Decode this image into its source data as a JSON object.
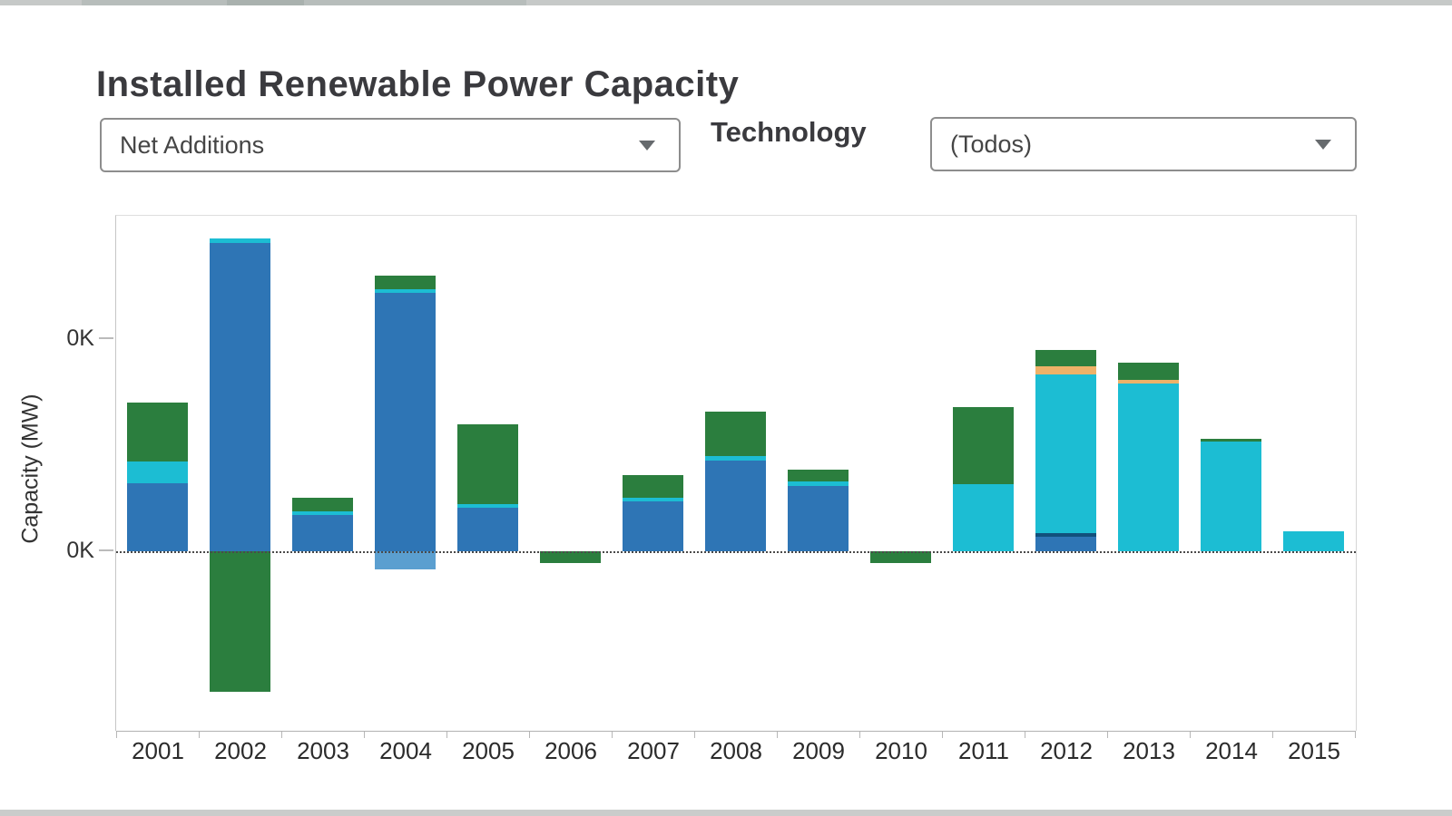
{
  "header": {
    "title": "Installed Renewable Power Capacity"
  },
  "controls": {
    "measure_dropdown": {
      "value": "Net Additions"
    },
    "technology_label": "Technology",
    "technology_dropdown": {
      "value": "(Todos)"
    }
  },
  "chart_data": {
    "type": "bar",
    "stacked": true,
    "title": "Installed Renewable Power Capacity",
    "xlabel": "",
    "ylabel": "Capacity (MW)",
    "y_tick_labels": [
      "0K",
      "0K"
    ],
    "y_tick_values_mw": [
      400,
      0
    ],
    "ylim_mw": [
      -340,
      635
    ],
    "grid": "zero-dotted-line-only",
    "legend": "none",
    "units_note": "MW, estimated from unlabeled axis (tick interval assumed 400 MW)",
    "colors": {
      "blue": "#2e75b5",
      "teal": "#1cbdd3",
      "green": "#2b7e3e",
      "orange": "#eeb268",
      "lightblue": "#5b9fd0",
      "navy_edge": "#12507c"
    },
    "years": [
      {
        "year": "2001",
        "pos": [
          [
            "blue",
            128
          ],
          [
            "teal",
            41
          ],
          [
            "green",
            111
          ]
        ],
        "neg": []
      },
      {
        "year": "2002",
        "pos": [
          [
            "blue",
            581
          ],
          [
            "teal",
            9
          ]
        ],
        "neg": [
          [
            "green",
            265
          ]
        ]
      },
      {
        "year": "2003",
        "pos": [
          [
            "blue",
            68
          ],
          [
            "teal",
            7
          ],
          [
            "green",
            26
          ]
        ],
        "neg": []
      },
      {
        "year": "2004",
        "pos": [
          [
            "blue",
            487
          ],
          [
            "teal",
            7
          ],
          [
            "green",
            26
          ]
        ],
        "neg": [
          [
            "lightblue",
            34
          ]
        ]
      },
      {
        "year": "2005",
        "pos": [
          [
            "blue",
            82
          ],
          [
            "teal",
            7
          ],
          [
            "green",
            150
          ]
        ],
        "neg": []
      },
      {
        "year": "2006",
        "pos": [],
        "neg": [
          [
            "green",
            22
          ]
        ]
      },
      {
        "year": "2007",
        "pos": [
          [
            "blue",
            94
          ],
          [
            "teal",
            7
          ],
          [
            "green",
            43
          ]
        ],
        "neg": []
      },
      {
        "year": "2008",
        "pos": [
          [
            "blue",
            171
          ],
          [
            "teal",
            9
          ],
          [
            "green",
            84
          ]
        ],
        "neg": []
      },
      {
        "year": "2009",
        "pos": [
          [
            "blue",
            123
          ],
          [
            "teal",
            9
          ],
          [
            "green",
            21
          ]
        ],
        "neg": []
      },
      {
        "year": "2010",
        "pos": [],
        "neg": [
          [
            "green",
            22
          ]
        ]
      },
      {
        "year": "2011",
        "pos": [
          [
            "teal",
            127
          ],
          [
            "green",
            145
          ]
        ],
        "neg": []
      },
      {
        "year": "2012",
        "pos": [
          [
            "blue",
            34,
            "edge"
          ],
          [
            "teal",
            299
          ],
          [
            "orange",
            15
          ],
          [
            "green",
            32
          ]
        ],
        "neg": []
      },
      {
        "year": "2013",
        "pos": [
          [
            "teal",
            316
          ],
          [
            "orange",
            7
          ],
          [
            "green",
            32
          ]
        ],
        "neg": []
      },
      {
        "year": "2014",
        "pos": [
          [
            "teal",
            207
          ],
          [
            "green",
            5
          ]
        ],
        "neg": []
      },
      {
        "year": "2015",
        "pos": [
          [
            "teal",
            38
          ]
        ],
        "neg": []
      }
    ]
  }
}
